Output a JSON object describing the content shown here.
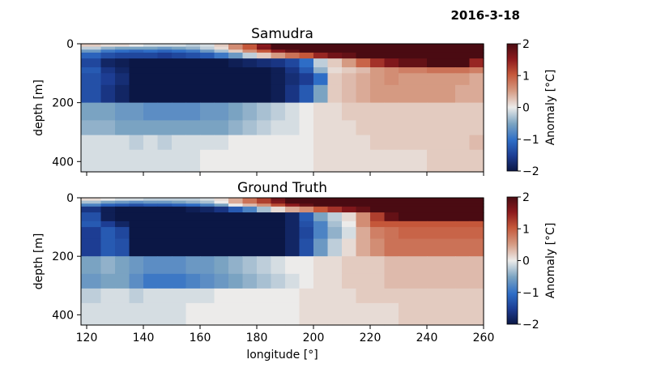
{
  "date": "2016-3-18",
  "chart_data": [
    {
      "type": "heatmap",
      "title": "Samudra",
      "xlabel": "",
      "ylabel": "depth [m]",
      "xlim": [
        118,
        260
      ],
      "ylim": [
        435,
        0
      ],
      "yticks": [
        0,
        200,
        400
      ],
      "xticks": [],
      "colorbar": {
        "label": "Anomaly [°C]",
        "min": -2,
        "max": 2,
        "ticks": [
          2,
          1,
          0,
          -1,
          -2
        ]
      },
      "depth_layers": [
        0,
        10,
        20,
        30,
        50,
        80,
        100,
        140,
        200,
        260,
        310,
        360,
        435
      ],
      "lon_points": [
        118,
        120,
        125,
        130,
        135,
        140,
        145,
        150,
        155,
        160,
        165,
        170,
        175,
        180,
        185,
        190,
        195,
        200,
        205,
        210,
        215,
        220,
        225,
        230,
        240,
        250,
        255,
        260
      ],
      "values": [
        [
          0.2,
          0.2,
          0.1,
          0.1,
          0.0,
          -0.1,
          -0.1,
          -0.1,
          -0.2,
          -0.1,
          0.2,
          0.6,
          1.0,
          1.5,
          2.0,
          2.0,
          2.0,
          2.0,
          2.0,
          2.0,
          2.0,
          2.0,
          2.0,
          2.0,
          2.0,
          2.0,
          2.0,
          2.0
        ],
        [
          -0.2,
          -0.2,
          -0.4,
          -0.5,
          -0.5,
          -0.5,
          -0.6,
          -0.5,
          -0.4,
          -0.2,
          0.1,
          0.6,
          1.0,
          1.6,
          2.0,
          2.0,
          2.0,
          2.0,
          2.0,
          2.0,
          2.0,
          2.0,
          2.0,
          2.0,
          2.0,
          2.0,
          2.0,
          2.0
        ],
        [
          -0.6,
          -0.6,
          -0.9,
          -1.0,
          -1.1,
          -1.0,
          -1.1,
          -1.0,
          -0.9,
          -0.6,
          -0.3,
          0.2,
          0.6,
          1.0,
          1.5,
          1.8,
          2.0,
          2.0,
          2.0,
          2.0,
          2.0,
          2.0,
          2.0,
          2.0,
          2.0,
          2.0,
          2.0,
          2.0
        ],
        [
          -1.1,
          -1.1,
          -1.3,
          -1.4,
          -1.4,
          -1.4,
          -1.5,
          -1.4,
          -1.3,
          -1.2,
          -0.9,
          -0.6,
          -0.2,
          0.2,
          0.5,
          0.8,
          1.0,
          1.4,
          1.7,
          1.8,
          2.0,
          2.0,
          2.0,
          2.0,
          2.0,
          2.0,
          2.0,
          2.0
        ],
        [
          -1.4,
          -1.4,
          -1.8,
          -1.9,
          -2.0,
          -2.0,
          -2.0,
          -2.0,
          -2.0,
          -2.0,
          -2.0,
          -1.9,
          -1.8,
          -1.7,
          -1.6,
          -1.4,
          -1.0,
          -0.2,
          0.2,
          0.5,
          0.9,
          1.3,
          1.6,
          1.8,
          2.0,
          2.0,
          1.4,
          1.5
        ],
        [
          -1.2,
          -1.2,
          -1.6,
          -1.8,
          -2.0,
          -2.0,
          -2.0,
          -2.0,
          -2.0,
          -2.0,
          -2.0,
          -2.0,
          -2.0,
          -2.0,
          -1.9,
          -1.6,
          -1.2,
          -0.4,
          0.1,
          0.2,
          0.3,
          0.5,
          0.6,
          0.7,
          0.8,
          0.8,
          0.7,
          0.6
        ],
        [
          -1.3,
          -1.3,
          -1.5,
          -1.7,
          -2.0,
          -2.0,
          -2.0,
          -2.0,
          -2.0,
          -2.0,
          -2.0,
          -2.0,
          -2.0,
          -2.0,
          -1.9,
          -1.7,
          -1.5,
          -1.0,
          0.2,
          0.3,
          0.4,
          0.5,
          0.6,
          0.5,
          0.5,
          0.5,
          0.4,
          0.4
        ],
        [
          -1.3,
          -1.3,
          -1.6,
          -1.8,
          -2.0,
          -2.0,
          -2.0,
          -2.0,
          -2.0,
          -2.0,
          -2.0,
          -2.0,
          -2.0,
          -2.0,
          -1.9,
          -1.6,
          -1.2,
          -0.5,
          0.2,
          0.3,
          0.4,
          0.5,
          0.5,
          0.5,
          0.5,
          0.4,
          0.4,
          0.4
        ],
        [
          -0.5,
          -0.5,
          -0.5,
          -0.6,
          -0.6,
          -0.7,
          -0.7,
          -0.7,
          -0.7,
          -0.6,
          -0.6,
          -0.5,
          -0.4,
          -0.3,
          -0.2,
          -0.1,
          0.0,
          0.1,
          0.1,
          0.2,
          0.2,
          0.2,
          0.2,
          0.2,
          0.2,
          0.2,
          0.2,
          0.2
        ],
        [
          -0.4,
          -0.4,
          -0.4,
          -0.5,
          -0.5,
          -0.5,
          -0.5,
          -0.5,
          -0.5,
          -0.5,
          -0.5,
          -0.4,
          -0.3,
          -0.2,
          -0.1,
          -0.1,
          0.0,
          0.1,
          0.1,
          0.1,
          0.2,
          0.2,
          0.2,
          0.2,
          0.2,
          0.2,
          0.2,
          0.2
        ],
        [
          -0.1,
          -0.1,
          -0.1,
          -0.1,
          -0.2,
          -0.1,
          -0.2,
          -0.1,
          -0.1,
          -0.1,
          -0.1,
          0.0,
          0.0,
          0.0,
          0.0,
          0.0,
          0.0,
          0.1,
          0.1,
          0.1,
          0.1,
          0.2,
          0.2,
          0.2,
          0.2,
          0.2,
          0.3,
          0.2
        ],
        [
          -0.1,
          -0.1,
          -0.1,
          -0.1,
          -0.1,
          -0.1,
          -0.1,
          -0.1,
          -0.1,
          0.0,
          0.0,
          0.0,
          0.0,
          0.0,
          0.0,
          0.0,
          0.0,
          0.1,
          0.1,
          0.1,
          0.1,
          0.1,
          0.1,
          0.1,
          0.2,
          0.2,
          0.2,
          0.1
        ]
      ]
    },
    {
      "type": "heatmap",
      "title": "Ground Truth",
      "xlabel": "longitude [°]",
      "ylabel": "depth [m]",
      "xlim": [
        118,
        260
      ],
      "ylim": [
        435,
        0
      ],
      "yticks": [
        0,
        200,
        400
      ],
      "xticks": [
        120,
        140,
        160,
        180,
        200,
        220,
        240,
        260
      ],
      "colorbar": {
        "label": "Anomaly [°C]",
        "min": -2,
        "max": 2,
        "ticks": [
          2,
          1,
          0,
          -1,
          -2
        ]
      },
      "depth_layers": [
        0,
        10,
        20,
        30,
        50,
        80,
        100,
        140,
        200,
        260,
        310,
        360,
        435
      ],
      "lon_points": [
        118,
        120,
        125,
        130,
        135,
        140,
        145,
        150,
        155,
        160,
        165,
        170,
        175,
        180,
        185,
        190,
        195,
        200,
        205,
        210,
        215,
        220,
        225,
        230,
        240,
        250,
        255,
        260
      ],
      "values": [
        [
          0.1,
          0.1,
          0.0,
          -0.1,
          -0.1,
          -0.2,
          -0.2,
          -0.2,
          -0.2,
          -0.1,
          0.1,
          0.4,
          0.8,
          1.2,
          1.7,
          2.0,
          2.0,
          2.0,
          2.0,
          2.0,
          2.0,
          2.0,
          2.0,
          2.0,
          2.0,
          2.0,
          2.0,
          2.0
        ],
        [
          -0.3,
          -0.3,
          -0.5,
          -0.6,
          -0.7,
          -0.6,
          -0.6,
          -0.5,
          -0.4,
          -0.3,
          0.0,
          0.4,
          0.8,
          1.2,
          1.6,
          2.0,
          2.0,
          2.0,
          2.0,
          2.0,
          2.0,
          2.0,
          2.0,
          2.0,
          2.0,
          2.0,
          2.0,
          2.0
        ],
        [
          -0.8,
          -0.8,
          -1.1,
          -1.2,
          -1.3,
          -1.2,
          -1.2,
          -1.1,
          -1.0,
          -0.8,
          -0.5,
          0.0,
          0.3,
          0.6,
          1.1,
          1.5,
          1.8,
          2.0,
          2.0,
          2.0,
          2.0,
          2.0,
          2.0,
          2.0,
          2.0,
          2.0,
          2.0,
          2.0
        ],
        [
          -1.6,
          -1.6,
          -1.9,
          -2.0,
          -2.0,
          -2.0,
          -2.0,
          -2.0,
          -1.9,
          -1.8,
          -1.6,
          -1.2,
          -0.8,
          -0.3,
          0.1,
          0.4,
          0.6,
          1.0,
          1.3,
          1.6,
          1.8,
          2.0,
          2.0,
          2.0,
          2.0,
          2.0,
          2.0,
          2.0
        ],
        [
          -1.3,
          -1.3,
          -1.9,
          -2.0,
          -2.0,
          -2.0,
          -2.0,
          -2.0,
          -2.0,
          -2.0,
          -2.0,
          -2.0,
          -2.0,
          -2.0,
          -2.0,
          -1.8,
          -1.2,
          -0.5,
          -0.2,
          0.1,
          0.6,
          1.2,
          1.8,
          2.0,
          2.0,
          2.0,
          2.0,
          2.0
        ],
        [
          -1.2,
          -1.2,
          -1.5,
          -1.8,
          -2.0,
          -2.0,
          -2.0,
          -2.0,
          -2.0,
          -2.0,
          -2.0,
          -2.0,
          -2.0,
          -2.0,
          -2.0,
          -1.8,
          -1.3,
          -0.8,
          -0.3,
          0.0,
          0.6,
          1.0,
          1.0,
          1.0,
          1.0,
          1.0,
          1.0,
          1.0
        ],
        [
          -1.5,
          -1.5,
          -1.2,
          -1.4,
          -2.0,
          -2.0,
          -2.0,
          -2.0,
          -2.0,
          -2.0,
          -2.0,
          -2.0,
          -2.0,
          -2.0,
          -2.0,
          -1.8,
          -1.4,
          -0.8,
          -0.4,
          -0.1,
          0.4,
          0.7,
          0.8,
          0.9,
          0.9,
          0.9,
          0.9,
          0.9
        ],
        [
          -1.5,
          -1.5,
          -1.2,
          -1.3,
          -2.0,
          -2.0,
          -2.0,
          -2.0,
          -2.0,
          -2.0,
          -2.0,
          -2.0,
          -2.0,
          -2.0,
          -2.0,
          -1.8,
          -1.3,
          -0.6,
          -0.2,
          0.1,
          0.4,
          0.6,
          0.8,
          0.8,
          0.8,
          0.8,
          0.8,
          0.8
        ],
        [
          -0.5,
          -0.5,
          -0.4,
          -0.5,
          -0.6,
          -0.7,
          -0.7,
          -0.7,
          -0.6,
          -0.6,
          -0.5,
          -0.4,
          -0.3,
          -0.2,
          -0.1,
          0.0,
          0.0,
          0.1,
          0.1,
          0.2,
          0.2,
          0.2,
          0.3,
          0.3,
          0.3,
          0.3,
          0.3,
          0.3
        ],
        [
          -0.6,
          -0.6,
          -0.5,
          -0.5,
          -0.7,
          -0.9,
          -0.9,
          -0.9,
          -0.8,
          -0.7,
          -0.6,
          -0.5,
          -0.4,
          -0.3,
          -0.2,
          -0.1,
          0.0,
          0.1,
          0.1,
          0.2,
          0.2,
          0.2,
          0.3,
          0.3,
          0.3,
          0.3,
          0.3,
          0.3
        ],
        [
          -0.2,
          -0.2,
          -0.1,
          -0.1,
          -0.2,
          -0.1,
          -0.1,
          -0.1,
          -0.1,
          -0.1,
          0.0,
          0.0,
          0.0,
          0.0,
          0.0,
          0.0,
          0.1,
          0.1,
          0.1,
          0.1,
          0.2,
          0.2,
          0.2,
          0.2,
          0.2,
          0.2,
          0.2,
          0.2
        ],
        [
          -0.1,
          -0.1,
          -0.1,
          -0.1,
          -0.1,
          -0.1,
          -0.1,
          -0.1,
          0.0,
          0.0,
          0.0,
          0.0,
          0.0,
          0.0,
          0.0,
          0.0,
          0.1,
          0.1,
          0.1,
          0.1,
          0.1,
          0.1,
          0.1,
          0.2,
          0.2,
          0.2,
          0.2,
          0.2
        ]
      ]
    }
  ]
}
